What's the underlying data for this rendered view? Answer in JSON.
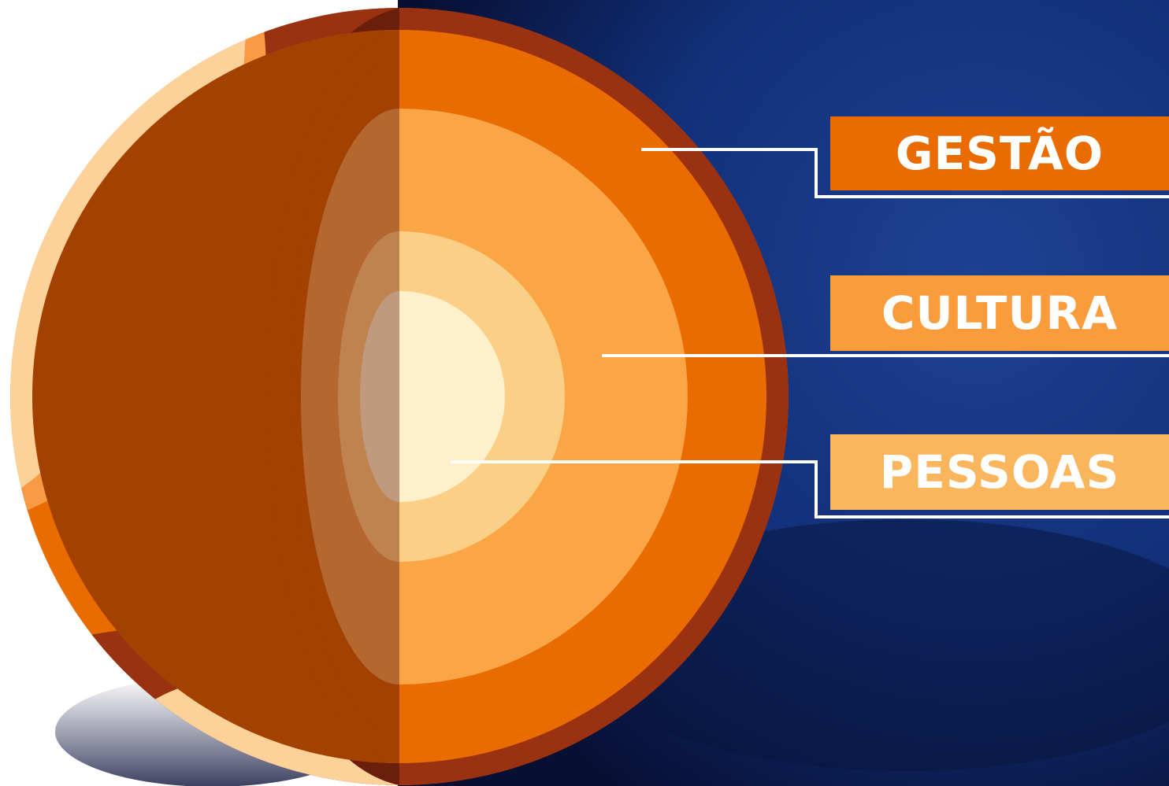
{
  "labels": {
    "outer": "GESTÃO",
    "middle": "CULTURA",
    "core": "PESSOAS"
  },
  "colors": {
    "background_dark": "#0b1a4e",
    "background_blue": "#12307a",
    "crust": "#9a3211",
    "mantle": "#ea6c00",
    "outer_core": "#fba646",
    "inner_core": "#fccf86",
    "center": "#fff0cc",
    "label_gestao": "#ea6c00",
    "label_cultura": "#fb9c3c",
    "label_pessoas": "#fbb65d",
    "connector_line": "#ffffff"
  }
}
